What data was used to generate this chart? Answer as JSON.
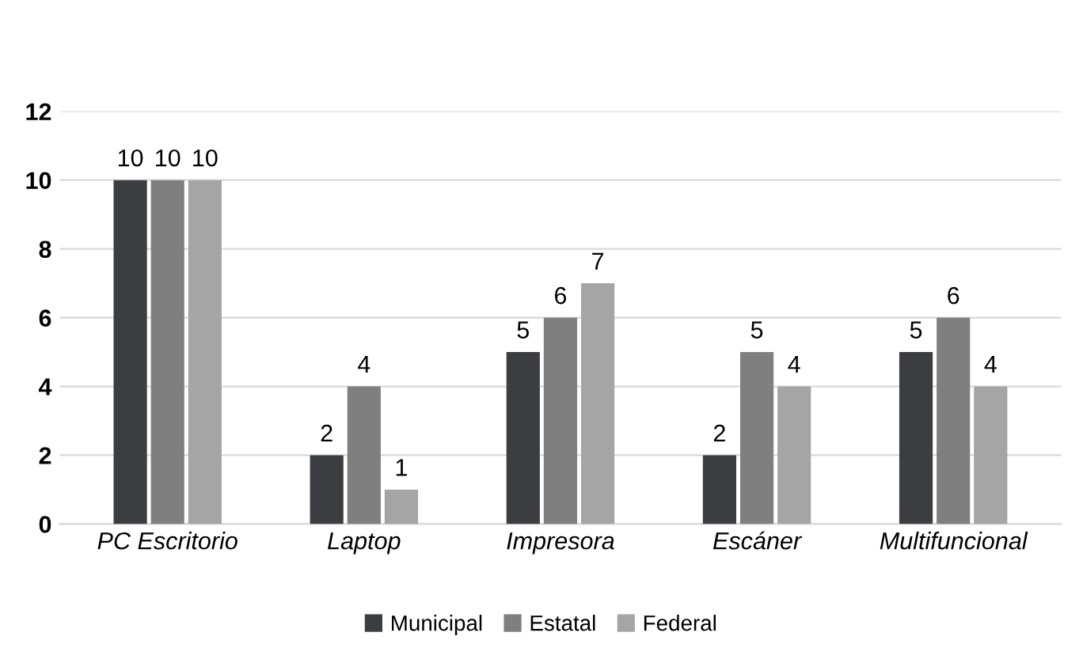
{
  "chart_data": {
    "type": "bar",
    "categories": [
      "PC Escritorio",
      "Laptop",
      "Impresora",
      "Escáner",
      "Multifuncional"
    ],
    "series": [
      {
        "name": "Municipal",
        "color": "#3c3d40",
        "values": [
          10,
          2,
          5,
          2,
          5
        ]
      },
      {
        "name": "Estatal",
        "color": "#7f7f7f",
        "values": [
          10,
          4,
          6,
          5,
          6
        ]
      },
      {
        "name": "Federal",
        "color": "#a5a5a5",
        "values": [
          10,
          1,
          7,
          4,
          4
        ]
      }
    ],
    "ylim": [
      0,
      12
    ],
    "yticks": [
      0,
      2,
      4,
      6,
      8,
      10,
      12
    ],
    "grid": "y",
    "legend": "bottom",
    "data_labels": true
  }
}
